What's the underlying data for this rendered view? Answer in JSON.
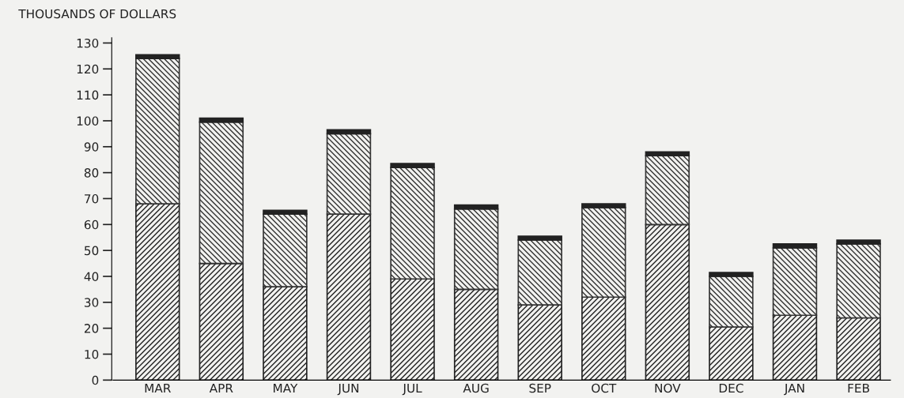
{
  "chart_data": {
    "type": "bar",
    "ylabel": "THOUSANDS OF DOLLARS",
    "stacked": true,
    "categories": [
      "MAR",
      "APR",
      "MAY",
      "JUN",
      "JUL",
      "AUG",
      "SEP",
      "OCT",
      "NOV",
      "DEC",
      "JAN",
      "FEB"
    ],
    "series": [
      {
        "color": "#222222",
        "values": [
          68,
          45,
          36,
          64,
          39,
          35,
          29,
          32,
          60,
          20.5,
          25,
          24
        ]
      },
      {
        "color": "#333333",
        "values": [
          56,
          54.5,
          28,
          31,
          43,
          31,
          25,
          34.5,
          26.5,
          19.5,
          26,
          28.5
        ]
      },
      {
        "color": "#222222",
        "values": [
          1.5,
          1.5,
          1.5,
          1.5,
          1.5,
          1.5,
          1.5,
          1.5,
          1.5,
          1.5,
          1.5,
          1.5
        ]
      }
    ],
    "ylim": [
      0,
      132
    ],
    "yticks": [
      0,
      10,
      20,
      30,
      40,
      50,
      60,
      70,
      80,
      90,
      100,
      110,
      120,
      130
    ],
    "grid": false,
    "legend": false
  }
}
